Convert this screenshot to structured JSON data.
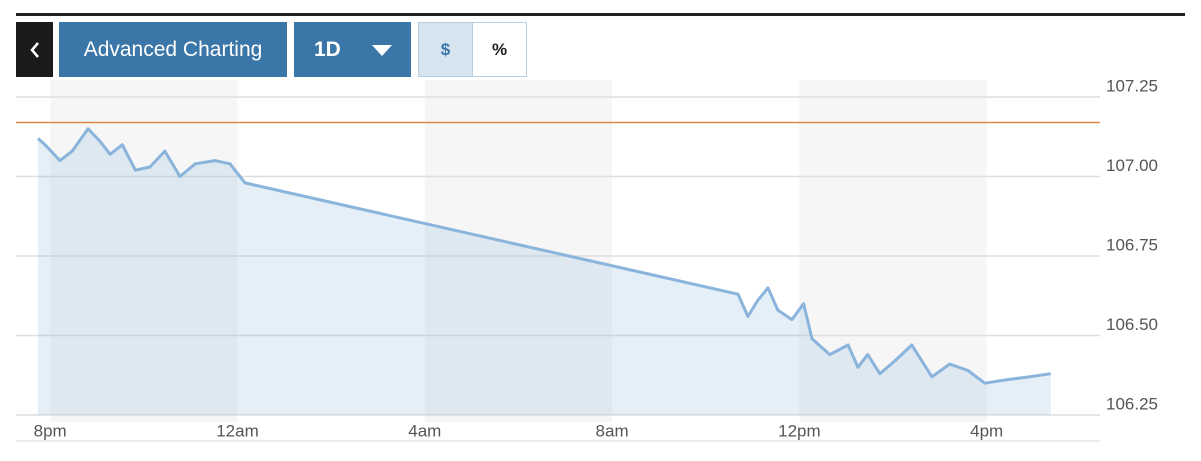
{
  "toolbar": {
    "title": "Advanced Charting",
    "period": "1D",
    "units": [
      "$",
      "%"
    ]
  },
  "chart_data": {
    "type": "area",
    "x": [
      19.74,
      19.89,
      20.21,
      20.47,
      20.81,
      21.07,
      21.28,
      21.54,
      21.82,
      22.13,
      22.45,
      22.77,
      23.1,
      23.52,
      23.84,
      24.16,
      34.69,
      34.9,
      35.11,
      35.33,
      35.54,
      35.84,
      36.09,
      36.27,
      36.65,
      37.04,
      37.25,
      37.46,
      37.72,
      38.04,
      38.4,
      38.83,
      39.21,
      39.6,
      39.96,
      40.39,
      40.92,
      41.37
    ],
    "values": [
      107.12,
      107.1,
      107.05,
      107.08,
      107.15,
      107.11,
      107.07,
      107.1,
      107.02,
      107.03,
      107.08,
      107.0,
      107.04,
      107.05,
      107.04,
      106.98,
      106.63,
      106.56,
      106.61,
      106.65,
      106.58,
      106.55,
      106.6,
      106.49,
      106.44,
      106.47,
      106.4,
      106.44,
      106.38,
      106.42,
      106.47,
      106.37,
      106.41,
      106.39,
      106.35,
      106.36,
      106.37,
      106.38
    ],
    "color": "#8ab4dc",
    "reference_line": 107.17,
    "reference_color": "#e0894a",
    "xlim": [
      19.27,
      42.42
    ],
    "xticks": [
      {
        "value": 20,
        "label": "8pm"
      },
      {
        "value": 24,
        "label": "12am"
      },
      {
        "value": 28,
        "label": "4am"
      },
      {
        "value": 32,
        "label": "8am"
      },
      {
        "value": 36,
        "label": "12pm"
      },
      {
        "value": 40,
        "label": "4pm"
      }
    ],
    "ylim": [
      106.25,
      107.28
    ],
    "yticks": [
      106.25,
      {
        "value": 106.5,
        "label": "106.50"
      },
      {
        "value": 106.75,
        "label": "106.75"
      },
      {
        "value": 107,
        "label": "107.00"
      },
      107.25
    ],
    "grid": true
  }
}
